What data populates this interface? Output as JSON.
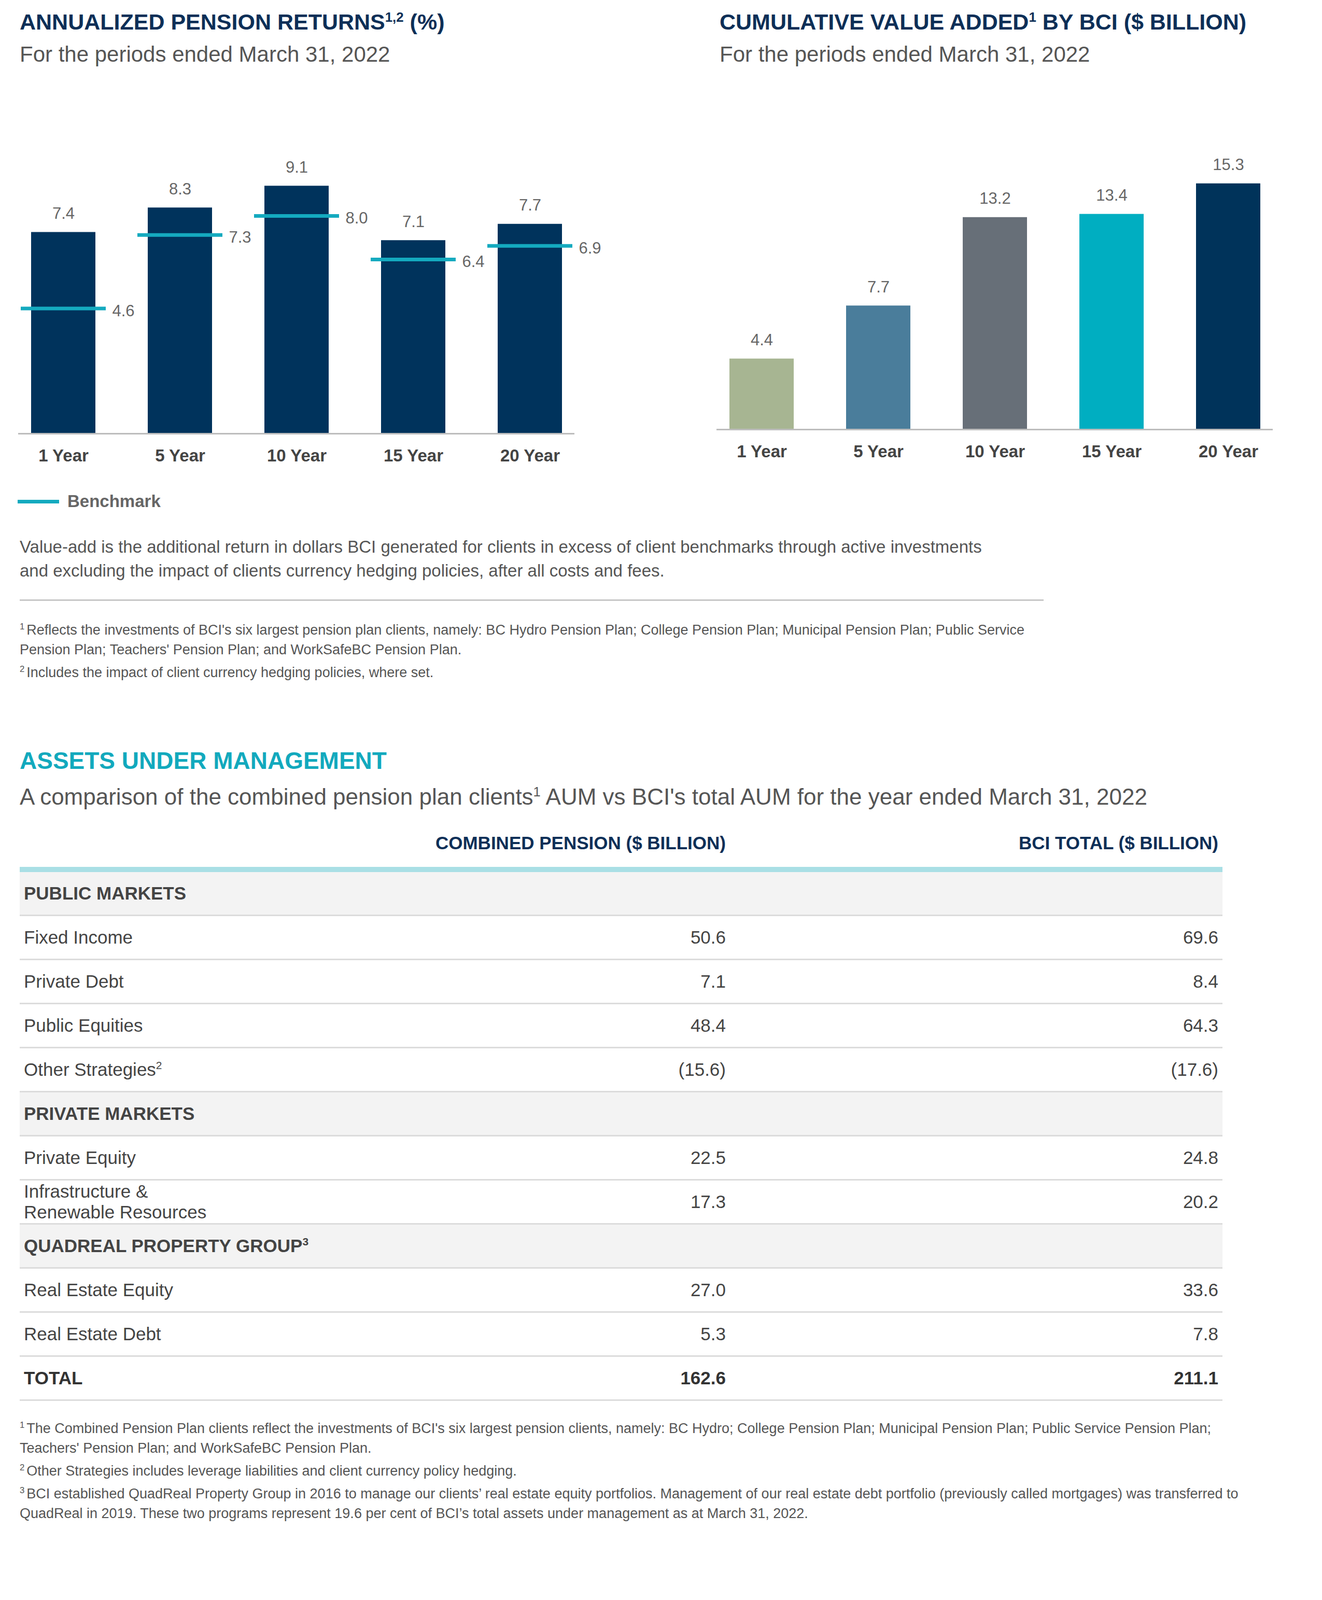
{
  "chart_data": [
    {
      "type": "bar",
      "title": "ANNUALIZED PENSION RETURNS",
      "title_superscript": "1,2",
      "title_unit": "(%)",
      "subtitle": "For the periods ended March 31, 2022",
      "categories": [
        "1 Year",
        "5 Year",
        "10 Year",
        "15 Year",
        "20 Year"
      ],
      "series": [
        {
          "type": "bar",
          "color": "#00335c",
          "values": [
            7.4,
            8.3,
            9.1,
            7.1,
            7.7
          ]
        },
        {
          "name": "Benchmark",
          "type": "tick",
          "color": "#14aabf",
          "values": [
            4.6,
            7.3,
            8.0,
            6.4,
            6.9
          ],
          "value_labels": [
            "4.6",
            "7.3",
            "8.0",
            "6.4",
            "6.9"
          ]
        }
      ],
      "ylim": [
        0,
        10
      ],
      "yticks": [],
      "tick_labels": "x",
      "data_labels": true,
      "legend": "bottom-left"
    },
    {
      "type": "bar",
      "title": "CUMULATIVE VALUE ADDED",
      "title_superscript": "1",
      "title_unit": "BY BCI ($ BILLION)",
      "subtitle": "For the periods ended March 31, 2022",
      "categories": [
        "1 Year",
        "5 Year",
        "10 Year",
        "15 Year",
        "20 Year"
      ],
      "series": [
        {
          "type": "bar",
          "colors": [
            "#a7b592",
            "#4a7d9b",
            "#676f78",
            "#00aec1",
            "#00335a"
          ],
          "values": [
            4.4,
            7.7,
            13.2,
            13.4,
            15.3
          ]
        }
      ],
      "ylim": [
        0,
        16
      ],
      "yticks": [],
      "tick_labels": "x",
      "data_labels": true
    }
  ],
  "caption": "Value-add is the additional return in dollars BCI generated for clients in excess of client benchmarks through active investments and excluding the impact of clients currency hedging policies, after all costs and fees.",
  "chart_footnotes": [
    {
      "mark": "1",
      "text": "Reflects the investments of BCI's six largest pension plan clients, namely: BC Hydro Pension Plan; College Pension Plan; Municipal Pension Plan; Public Service Pension Plan; Teachers' Pension Plan; and WorkSafeBC Pension Plan."
    },
    {
      "mark": "2",
      "text": "Includes the impact of client currency hedging policies, where set."
    }
  ],
  "table_section": {
    "title": "ASSETS UNDER MANAGEMENT",
    "subtitle_before": "A comparison of the combined pension plan clients",
    "subtitle_superscript": "1",
    "subtitle_after": " AUM vs BCI's total AUM for the year ended March 31, 2022",
    "columns": [
      "COMBINED PENSION ($ BILLION)",
      "BCI TOTAL ($ BILLION)"
    ],
    "sections": [
      {
        "title": "PUBLIC MARKETS",
        "rows": [
          {
            "label": "Fixed Income",
            "values": [
              "50.6",
              "69.6"
            ]
          },
          {
            "label": "Private Debt",
            "values": [
              "7.1",
              "8.4"
            ]
          },
          {
            "label": "Public Equities",
            "values": [
              "48.4",
              "64.3"
            ]
          },
          {
            "label": "Other Strategies",
            "superscript": "2",
            "values": [
              "(15.6)",
              "(17.6)"
            ]
          }
        ]
      },
      {
        "title": "PRIVATE MARKETS",
        "rows": [
          {
            "label": "Private Equity",
            "values": [
              "22.5",
              "24.8"
            ]
          },
          {
            "label": "Infrastructure & Renewable Resources",
            "values": [
              "17.3",
              "20.2"
            ]
          }
        ]
      },
      {
        "title": "QUADREAL PROPERTY GROUP",
        "superscript": "3",
        "rows": [
          {
            "label": "Real Estate Equity",
            "values": [
              "27.0",
              "33.6"
            ]
          },
          {
            "label": "Real Estate Debt",
            "values": [
              "5.3",
              "7.8"
            ]
          }
        ]
      }
    ],
    "total": {
      "label": "TOTAL",
      "values": [
        "162.6",
        "211.1"
      ]
    },
    "footnotes": [
      {
        "mark": "1",
        "text": "The Combined Pension Plan clients reflect the investments of BCI's six largest pension clients, namely: BC Hydro; College Pension Plan; Municipal Pension Plan; Public Service Pension Plan; Teachers' Pension Plan; and WorkSafeBC Pension Plan."
      },
      {
        "mark": "2",
        "text": "Other Strategies includes leverage liabilities and client currency policy hedging."
      },
      {
        "mark": "3",
        "text": "BCI established QuadReal Property Group in 2016 to manage our clients’ real estate equity portfolios. Management of our real estate debt portfolio (previously called mortgages) was transferred to QuadReal in 2019. These two programs represent 19.6 per cent of BCI’s total assets under management as at March 31, 2022."
      }
    ]
  }
}
